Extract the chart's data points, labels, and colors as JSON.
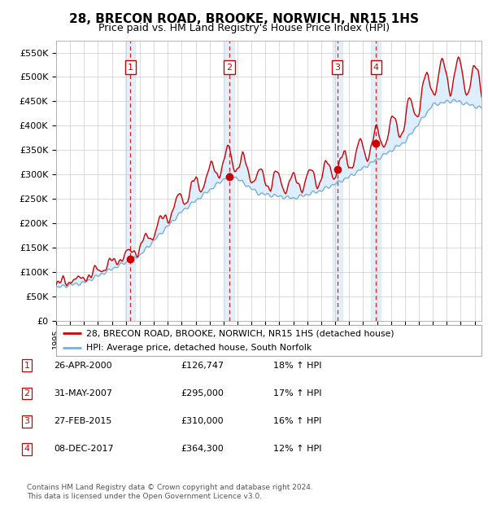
{
  "title": "28, BRECON ROAD, BROOKE, NORWICH, NR15 1HS",
  "subtitle": "Price paid vs. HM Land Registry's House Price Index (HPI)",
  "ylim": [
    0,
    575000
  ],
  "yticks": [
    0,
    50000,
    100000,
    150000,
    200000,
    250000,
    300000,
    350000,
    400000,
    450000,
    500000,
    550000
  ],
  "ytick_labels": [
    "£0",
    "£50K",
    "£100K",
    "£150K",
    "£200K",
    "£250K",
    "£300K",
    "£350K",
    "£400K",
    "£450K",
    "£500K",
    "£550K"
  ],
  "xlim_start": 1995.0,
  "xlim_end": 2025.5,
  "grid_color": "#cccccc",
  "red_line_color": "#cc0000",
  "blue_line_color": "#7bafd4",
  "shaded_region_color": "#ddeeff",
  "transactions": [
    {
      "id": 1,
      "x": 2000.32,
      "price": 126747
    },
    {
      "id": 2,
      "x": 2007.41,
      "price": 295000
    },
    {
      "id": 3,
      "x": 2015.16,
      "price": 310000
    },
    {
      "id": 4,
      "x": 2017.93,
      "price": 364300
    }
  ],
  "legend_line1": "28, BRECON ROAD, BROOKE, NORWICH, NR15 1HS (detached house)",
  "legend_line2": "HPI: Average price, detached house, South Norfolk",
  "footer1": "Contains HM Land Registry data © Crown copyright and database right 2024.",
  "footer2": "This data is licensed under the Open Government Licence v3.0.",
  "table_rows": [
    {
      "id": 1,
      "date": "26-APR-2000",
      "price": "£126,747",
      "hpi": "18% ↑ HPI"
    },
    {
      "id": 2,
      "date": "31-MAY-2007",
      "price": "£295,000",
      "hpi": "17% ↑ HPI"
    },
    {
      "id": 3,
      "date": "27-FEB-2015",
      "price": "£310,000",
      "hpi": "16% ↑ HPI"
    },
    {
      "id": 4,
      "date": "08-DEC-2017",
      "price": "£364,300",
      "hpi": "12% ↑ HPI"
    }
  ]
}
